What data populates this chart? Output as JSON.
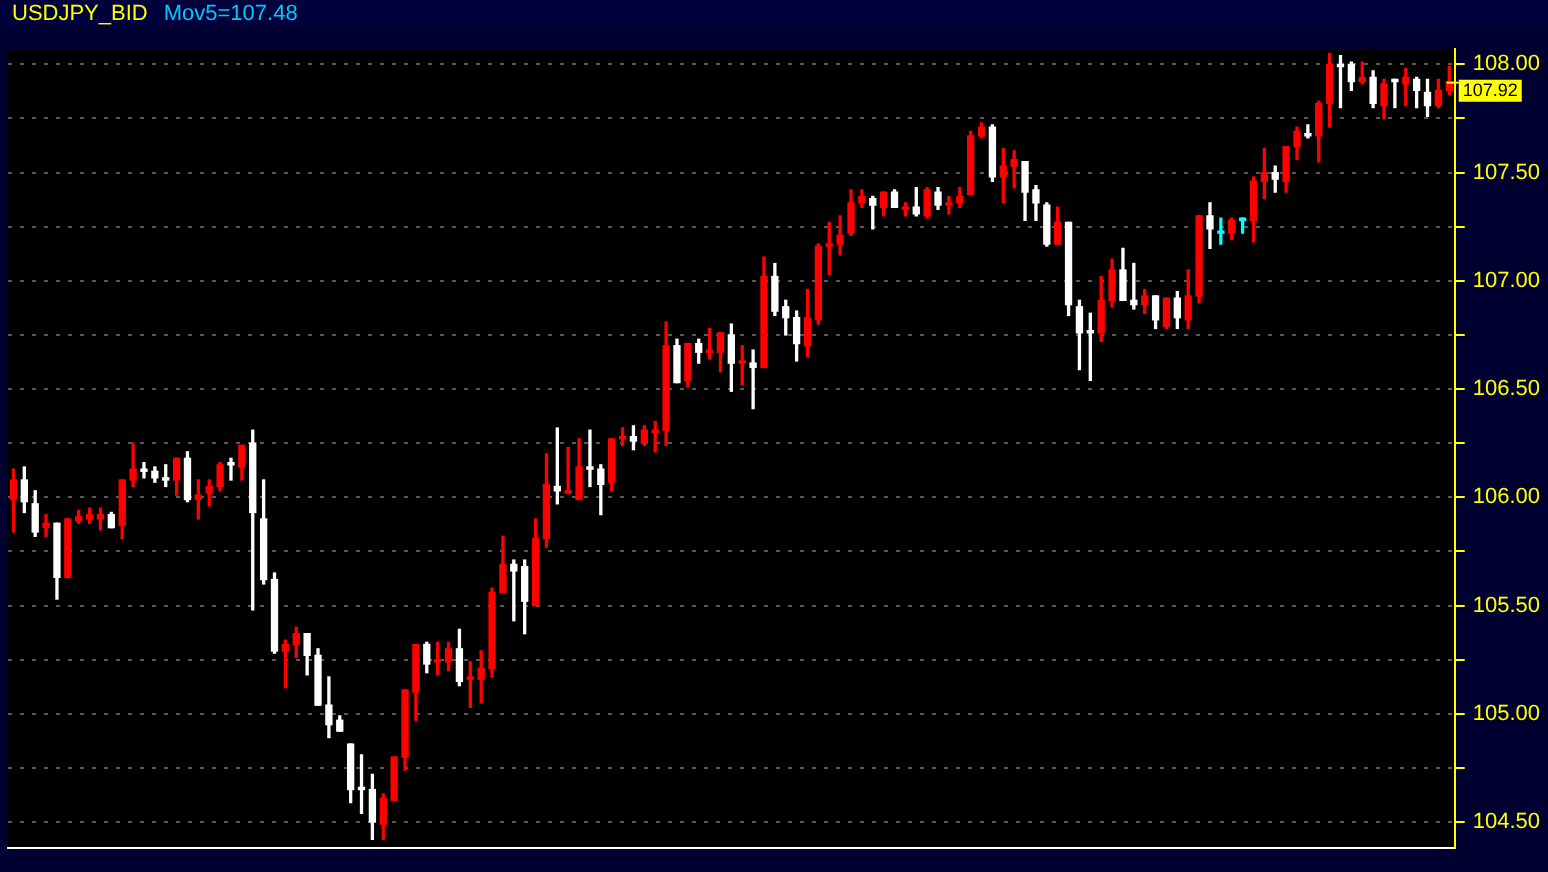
{
  "chart_data": {
    "type": "candlestick",
    "title": "USDJPY_BID",
    "subtitle": "Mov5=107.48",
    "categories": [
      null,
      null,
      null,
      null,
      null,
      null,
      null,
      null,
      null,
      null,
      null,
      null,
      null,
      null,
      null,
      null,
      null,
      null,
      null,
      null,
      null,
      null,
      null,
      null,
      null,
      null,
      null,
      null,
      null,
      null,
      null,
      null,
      null,
      null,
      null,
      null,
      null,
      null,
      null,
      null,
      null,
      null,
      null,
      null,
      null,
      null,
      null,
      null,
      null,
      null,
      null,
      null,
      null,
      null,
      null,
      null,
      null,
      null,
      null,
      null,
      null,
      null,
      null,
      null,
      null,
      null,
      null,
      null,
      null,
      null,
      null,
      null,
      null,
      null,
      null,
      null,
      null,
      null,
      null,
      null,
      null,
      null,
      null,
      null,
      null,
      null,
      null,
      null,
      null,
      null,
      null,
      null,
      null,
      null,
      null,
      null,
      null,
      null,
      null,
      null,
      null,
      null,
      null,
      null,
      null,
      null,
      null,
      null,
      null,
      null,
      null,
      null,
      null,
      null,
      null,
      null,
      null,
      null,
      null,
      null,
      null,
      null,
      null,
      null,
      null,
      null,
      null,
      null,
      null,
      null,
      null,
      null,
      null
    ],
    "ohlc": [
      [
        105.99,
        106.13,
        105.84,
        106.08
      ],
      [
        106.08,
        106.14,
        105.93,
        105.98
      ],
      [
        105.97,
        106.03,
        105.82,
        105.84
      ],
      [
        105.86,
        105.92,
        105.82,
        105.88
      ],
      [
        105.88,
        105.88,
        105.53,
        105.63
      ],
      [
        105.63,
        105.9,
        105.63,
        105.9
      ],
      [
        105.89,
        105.94,
        105.88,
        105.91
      ],
      [
        105.9,
        105.95,
        105.88,
        105.92
      ],
      [
        105.9,
        105.95,
        105.85,
        105.92
      ],
      [
        105.92,
        105.93,
        105.86,
        105.86
      ],
      [
        105.87,
        106.08,
        105.81,
        106.08
      ],
      [
        106.08,
        106.25,
        106.05,
        106.13
      ],
      [
        106.13,
        106.16,
        106.09,
        106.12
      ],
      [
        106.12,
        106.14,
        106.07,
        106.09
      ],
      [
        106.09,
        106.15,
        106.05,
        106.08
      ],
      [
        106.08,
        106.18,
        106.01,
        106.18
      ],
      [
        106.18,
        106.21,
        105.98,
        105.99
      ],
      [
        105.99,
        106.08,
        105.9,
        106.01
      ],
      [
        106.02,
        106.08,
        105.96,
        106.05
      ],
      [
        106.05,
        106.16,
        106.03,
        106.15
      ],
      [
        106.16,
        106.18,
        106.08,
        106.15
      ],
      [
        106.14,
        106.24,
        106.08,
        106.24
      ],
      [
        106.25,
        106.31,
        105.48,
        105.93
      ],
      [
        105.9,
        106.08,
        105.6,
        105.62
      ],
      [
        105.62,
        105.65,
        105.28,
        105.29
      ],
      [
        105.29,
        105.34,
        105.12,
        105.32
      ],
      [
        105.32,
        105.4,
        105.26,
        105.37
      ],
      [
        105.37,
        105.37,
        105.18,
        105.27
      ],
      [
        105.27,
        105.3,
        105.04,
        105.04
      ],
      [
        105.04,
        105.17,
        104.89,
        104.95
      ],
      [
        104.97,
        104.99,
        104.92,
        104.92
      ],
      [
        104.86,
        104.86,
        104.59,
        104.65
      ],
      [
        104.66,
        104.81,
        104.54,
        104.65
      ],
      [
        104.65,
        104.72,
        104.42,
        104.5
      ],
      [
        104.49,
        104.63,
        104.42,
        104.61
      ],
      [
        104.6,
        104.8,
        104.6,
        104.8
      ],
      [
        104.8,
        105.11,
        104.74,
        105.11
      ],
      [
        105.1,
        105.32,
        104.97,
        105.32
      ],
      [
        105.32,
        105.33,
        105.19,
        105.23
      ],
      [
        105.24,
        105.33,
        105.18,
        105.25
      ],
      [
        105.24,
        105.33,
        105.2,
        105.3
      ],
      [
        105.3,
        105.39,
        105.13,
        105.15
      ],
      [
        105.16,
        105.24,
        105.03,
        105.17
      ],
      [
        105.16,
        105.29,
        105.05,
        105.21
      ],
      [
        105.21,
        105.58,
        105.17,
        105.56
      ],
      [
        105.56,
        105.82,
        105.56,
        105.69
      ],
      [
        105.69,
        105.71,
        105.43,
        105.66
      ],
      [
        105.68,
        105.71,
        105.37,
        105.52
      ],
      [
        105.5,
        105.9,
        105.5,
        105.81
      ],
      [
        105.81,
        106.2,
        105.77,
        106.06
      ],
      [
        106.05,
        106.32,
        105.97,
        106.03
      ],
      [
        106.02,
        106.23,
        106.02,
        106.03
      ],
      [
        105.99,
        106.27,
        105.99,
        106.14
      ],
      [
        106.14,
        106.31,
        106.05,
        106.13
      ],
      [
        106.13,
        106.15,
        105.92,
        106.06
      ],
      [
        106.07,
        106.27,
        106.03,
        106.27
      ],
      [
        106.27,
        106.32,
        106.24,
        106.28
      ],
      [
        106.28,
        106.33,
        106.22,
        106.26
      ],
      [
        106.25,
        106.33,
        106.24,
        106.31
      ],
      [
        106.3,
        106.35,
        106.21,
        106.31
      ],
      [
        106.31,
        106.81,
        106.24,
        106.7
      ],
      [
        106.7,
        106.73,
        106.53,
        106.53
      ],
      [
        106.54,
        106.71,
        106.51,
        106.71
      ],
      [
        106.71,
        106.73,
        106.62,
        106.67
      ],
      [
        106.67,
        106.78,
        106.64,
        106.68
      ],
      [
        106.67,
        106.76,
        106.58,
        106.76
      ],
      [
        106.75,
        106.8,
        106.49,
        106.62
      ],
      [
        106.62,
        106.7,
        106.52,
        106.63
      ],
      [
        106.62,
        106.68,
        106.41,
        106.6
      ],
      [
        106.6,
        107.11,
        106.6,
        107.02
      ],
      [
        107.02,
        107.08,
        106.84,
        106.86
      ],
      [
        106.88,
        106.91,
        106.75,
        106.83
      ],
      [
        106.83,
        106.86,
        106.63,
        106.71
      ],
      [
        106.7,
        106.96,
        106.65,
        106.83
      ],
      [
        106.82,
        107.17,
        106.8,
        107.16
      ],
      [
        107.16,
        107.27,
        107.03,
        107.17
      ],
      [
        107.17,
        107.3,
        107.12,
        107.21
      ],
      [
        107.22,
        107.42,
        107.21,
        107.36
      ],
      [
        107.36,
        107.42,
        107.34,
        107.39
      ],
      [
        107.38,
        107.39,
        107.24,
        107.35
      ],
      [
        107.34,
        107.41,
        107.3,
        107.41
      ],
      [
        107.41,
        107.42,
        107.34,
        107.34
      ],
      [
        107.33,
        107.36,
        107.3,
        107.34
      ],
      [
        107.34,
        107.43,
        107.3,
        107.31
      ],
      [
        107.3,
        107.43,
        107.29,
        107.42
      ],
      [
        107.41,
        107.43,
        107.33,
        107.35
      ],
      [
        107.35,
        107.39,
        107.31,
        107.36
      ],
      [
        107.36,
        107.43,
        107.34,
        107.39
      ],
      [
        107.4,
        107.69,
        107.4,
        107.67
      ],
      [
        107.67,
        107.73,
        107.66,
        107.71
      ],
      [
        107.71,
        107.72,
        107.46,
        107.48
      ],
      [
        107.48,
        107.61,
        107.36,
        107.53
      ],
      [
        107.53,
        107.6,
        107.43,
        107.56
      ],
      [
        107.55,
        107.55,
        107.28,
        107.41
      ],
      [
        107.42,
        107.44,
        107.28,
        107.36
      ],
      [
        107.35,
        107.36,
        107.16,
        107.17
      ],
      [
        107.17,
        107.34,
        107.17,
        107.27
      ],
      [
        107.27,
        107.27,
        106.84,
        106.89
      ],
      [
        106.88,
        106.91,
        106.59,
        106.76
      ],
      [
        106.77,
        106.85,
        106.54,
        106.76
      ],
      [
        106.76,
        107.02,
        106.72,
        106.91
      ],
      [
        106.91,
        107.1,
        106.88,
        107.05
      ],
      [
        107.05,
        107.15,
        106.91,
        106.91
      ],
      [
        106.91,
        107.08,
        106.87,
        106.89
      ],
      [
        106.89,
        106.96,
        106.85,
        106.93
      ],
      [
        106.93,
        106.93,
        106.78,
        106.82
      ],
      [
        106.79,
        106.92,
        106.78,
        106.92
      ],
      [
        106.92,
        106.95,
        106.78,
        106.83
      ],
      [
        106.82,
        107.05,
        106.78,
        106.93
      ],
      [
        106.93,
        107.3,
        106.9,
        107.3
      ],
      [
        107.3,
        107.36,
        107.15,
        107.24
      ],
      [
        107.22,
        107.29,
        107.17,
        107.22
      ],
      [
        107.22,
        107.29,
        107.19,
        107.28
      ],
      [
        107.28,
        107.29,
        107.22,
        107.28
      ],
      [
        107.28,
        107.48,
        107.18,
        107.46
      ],
      [
        107.46,
        107.61,
        107.38,
        107.5
      ],
      [
        107.5,
        107.53,
        107.41,
        107.47
      ],
      [
        107.46,
        107.62,
        107.41,
        107.62
      ],
      [
        107.62,
        107.71,
        107.56,
        107.69
      ],
      [
        107.68,
        107.72,
        107.66,
        107.67
      ],
      [
        107.67,
        107.83,
        107.55,
        107.82
      ],
      [
        107.82,
        108.05,
        107.71,
        108.0
      ],
      [
        108.0,
        108.04,
        107.8,
        107.99
      ],
      [
        108.0,
        108.01,
        107.88,
        107.92
      ],
      [
        107.92,
        108.01,
        107.91,
        107.94
      ],
      [
        107.94,
        107.97,
        107.8,
        107.82
      ],
      [
        107.81,
        107.93,
        107.75,
        107.91
      ],
      [
        107.93,
        107.93,
        107.8,
        107.92
      ],
      [
        107.91,
        107.98,
        107.81,
        107.94
      ],
      [
        107.93,
        107.94,
        107.8,
        107.88
      ],
      [
        107.87,
        107.93,
        107.76,
        107.81
      ],
      [
        107.81,
        107.93,
        107.8,
        107.88
      ],
      [
        107.88,
        107.99,
        107.86,
        107.92
      ]
    ],
    "colors": [
      "#ff0000",
      "#ffffff",
      "#ffffff",
      "#ff0000",
      "#ffffff",
      "#ff0000",
      "#ff0000",
      "#ff0000",
      "#ff0000",
      "#ffffff",
      "#ff0000",
      "#ff0000",
      "#ffffff",
      "#ffffff",
      "#ffffff",
      "#ff0000",
      "#ffffff",
      "#ff0000",
      "#ff0000",
      "#ff0000",
      "#ffffff",
      "#ff0000",
      "#ffffff",
      "#ffffff",
      "#ffffff",
      "#ff0000",
      "#ff0000",
      "#ffffff",
      "#ffffff",
      "#ffffff",
      "#ffffff",
      "#ffffff",
      "#ffffff",
      "#ffffff",
      "#ff0000",
      "#ff0000",
      "#ff0000",
      "#ff0000",
      "#ffffff",
      "#ff0000",
      "#ff0000",
      "#ffffff",
      "#ff0000",
      "#ff0000",
      "#ff0000",
      "#ff0000",
      "#ffffff",
      "#ffffff",
      "#ff0000",
      "#ff0000",
      "#ffffff",
      "#ff0000",
      "#ff0000",
      "#ffffff",
      "#ffffff",
      "#ff0000",
      "#ff0000",
      "#ffffff",
      "#ff0000",
      "#ff0000",
      "#ff0000",
      "#ffffff",
      "#ff0000",
      "#ffffff",
      "#ff0000",
      "#ff0000",
      "#ffffff",
      "#ff0000",
      "#ffffff",
      "#ff0000",
      "#ffffff",
      "#ffffff",
      "#ffffff",
      "#ff0000",
      "#ff0000",
      "#ff0000",
      "#ff0000",
      "#ff0000",
      "#ff0000",
      "#ffffff",
      "#ff0000",
      "#ffffff",
      "#ff0000",
      "#ffffff",
      "#ff0000",
      "#ffffff",
      "#ff0000",
      "#ff0000",
      "#ff0000",
      "#ff0000",
      "#ffffff",
      "#ff0000",
      "#ff0000",
      "#ffffff",
      "#ffffff",
      "#ffffff",
      "#ff0000",
      "#ffffff",
      "#ffffff",
      "#ffffff",
      "#ff0000",
      "#ff0000",
      "#ffffff",
      "#ffffff",
      "#ff0000",
      "#ffffff",
      "#ff0000",
      "#ffffff",
      "#ff0000",
      "#ff0000",
      "#ffffff",
      "#00ffff",
      "#ff0000",
      "#00ffff",
      "#ff0000",
      "#ff0000",
      "#ffffff",
      "#ff0000",
      "#ff0000",
      "#ffffff",
      "#ff0000",
      "#ff0000",
      "#ffffff",
      "#ffffff",
      "#ff0000",
      "#ffffff",
      "#ff0000",
      "#ffffff",
      "#ff0000",
      "#ffffff",
      "#ffffff",
      "#ff0000",
      "#ff0000"
    ],
    "ylim": [
      104.38,
      108.07
    ],
    "yticks": [
      {
        "value": 104.5,
        "label": "104.50"
      },
      {
        "value": 104.75,
        "label": null
      },
      {
        "value": 105,
        "label": "105.00"
      },
      {
        "value": 105.25,
        "label": null
      },
      {
        "value": 105.5,
        "label": "105.50"
      },
      {
        "value": 105.75,
        "label": null
      },
      {
        "value": 106,
        "label": "106.00"
      },
      {
        "value": 106.25,
        "label": null
      },
      {
        "value": 106.5,
        "label": "106.50"
      },
      {
        "value": 106.75,
        "label": null
      },
      {
        "value": 107,
        "label": "107.00"
      },
      {
        "value": 107.25,
        "label": null
      },
      {
        "value": 107.5,
        "label": "107.50"
      },
      {
        "value": 107.75,
        "label": null
      },
      {
        "value": 108,
        "label": "108.00"
      }
    ],
    "annotations": [
      "107.92"
    ],
    "grid": "y",
    "legend": false,
    "tick_labels": "y"
  }
}
